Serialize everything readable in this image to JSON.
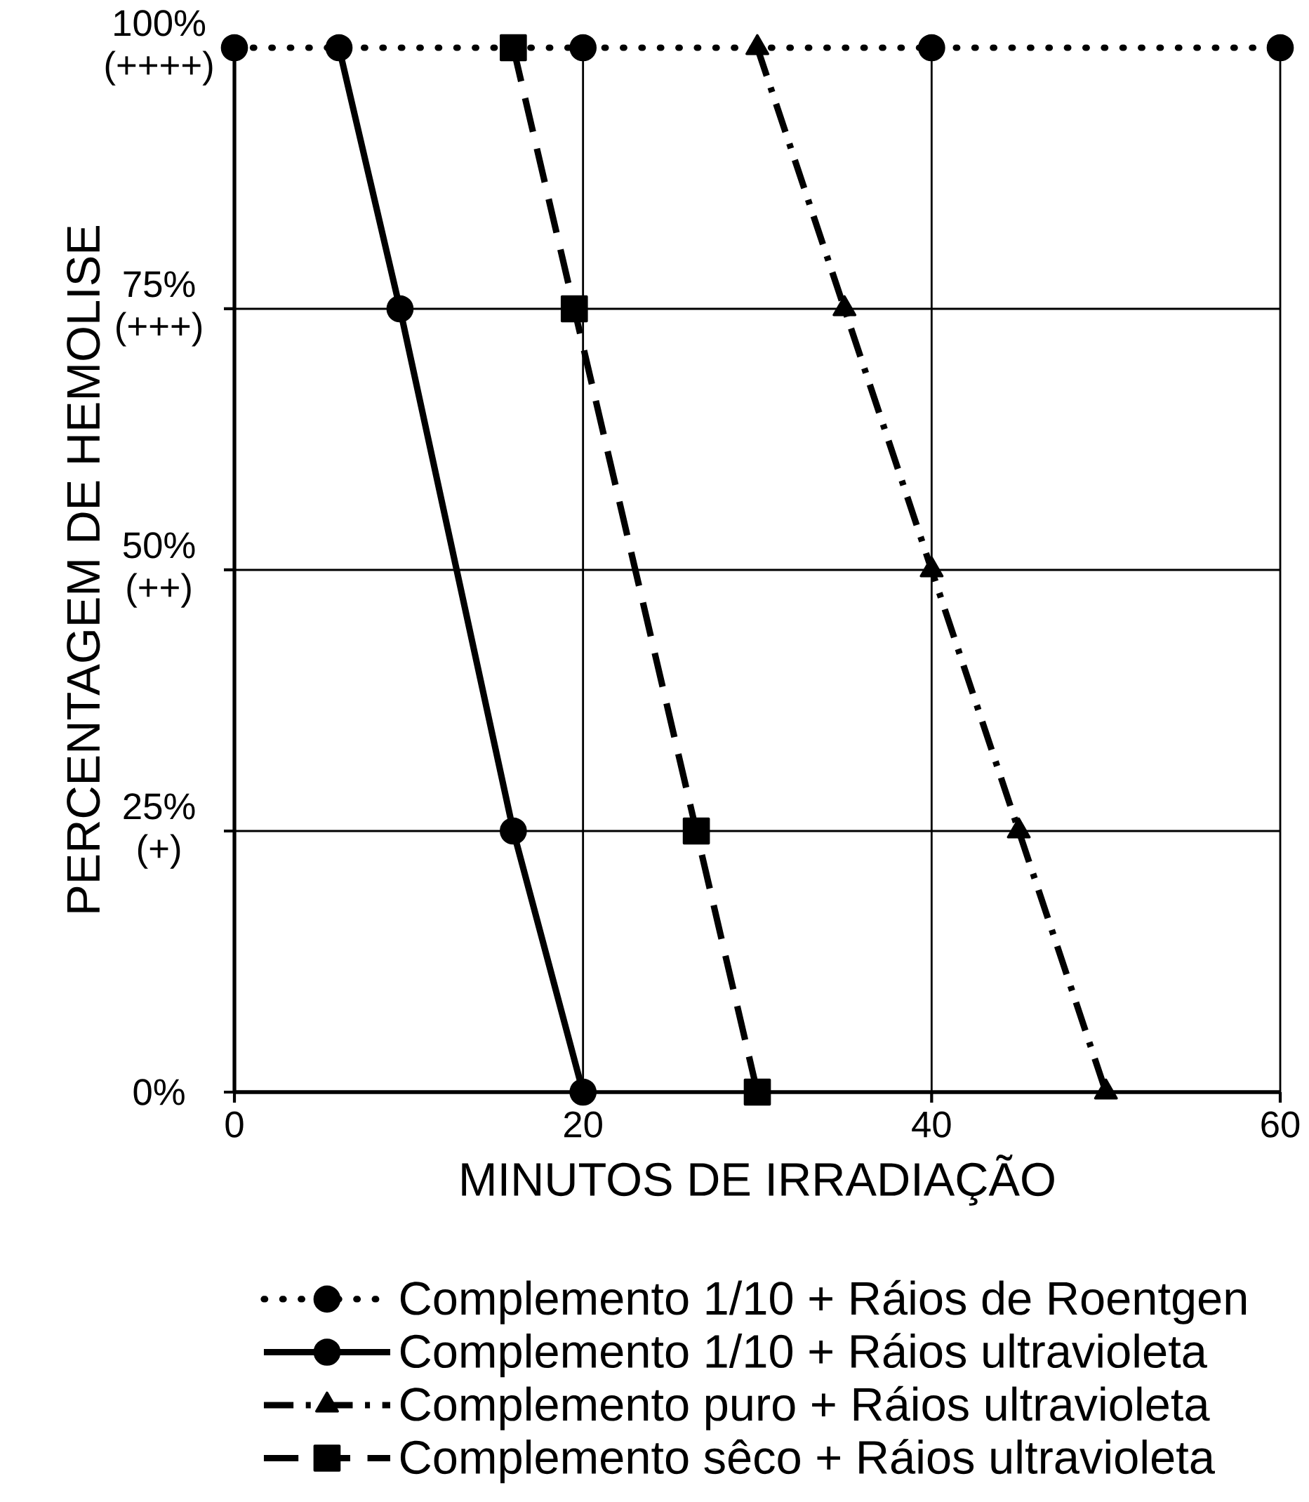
{
  "chart_data": {
    "type": "line",
    "xlabel": "MINUTOS DE IRRADIAÇÃO",
    "ylabel": "PERCENTAGEM DE HEMOLISE",
    "xlim": [
      0,
      60
    ],
    "xticks": [
      0,
      20,
      40,
      60
    ],
    "ylim": [
      0,
      100
    ],
    "yticks": [
      {
        "value": 0,
        "label": "0%"
      },
      {
        "value": 25,
        "label": "25% (+)"
      },
      {
        "value": 50,
        "label": "50% (++)"
      },
      {
        "value": 75,
        "label": "75% (+++)"
      },
      {
        "value": 100,
        "label": "100% (++++)"
      }
    ],
    "grid": true,
    "legend": "bottom",
    "series": [
      {
        "name": "Complemento 1/10 + Ráios de Roentgen",
        "color": "#000000",
        "marker": "circle",
        "line_style": "dotted",
        "x": [
          0,
          20,
          40,
          60
        ],
        "values": [
          100,
          100,
          100,
          100
        ]
      },
      {
        "name": "Complemento 1/10 + Ráios ultravioleta",
        "color": "#000000",
        "marker": "circle",
        "line_style": "solid",
        "x": [
          6,
          9.5,
          16,
          20
        ],
        "values": [
          100,
          75,
          25,
          0
        ]
      },
      {
        "name": "Complemento puro + Ráios ultravioleta",
        "color": "#000000",
        "marker": "triangle",
        "line_style": "dashdot",
        "x": [
          30,
          35,
          40,
          45,
          50
        ],
        "values": [
          100,
          75,
          50,
          25,
          0
        ]
      },
      {
        "name": "Complemento sêco + Ráios ultravioleta",
        "color": "#000000",
        "marker": "square",
        "line_style": "dashed",
        "x": [
          16,
          19.5,
          26.5,
          30
        ],
        "values": [
          100,
          75,
          25,
          0
        ]
      }
    ]
  }
}
